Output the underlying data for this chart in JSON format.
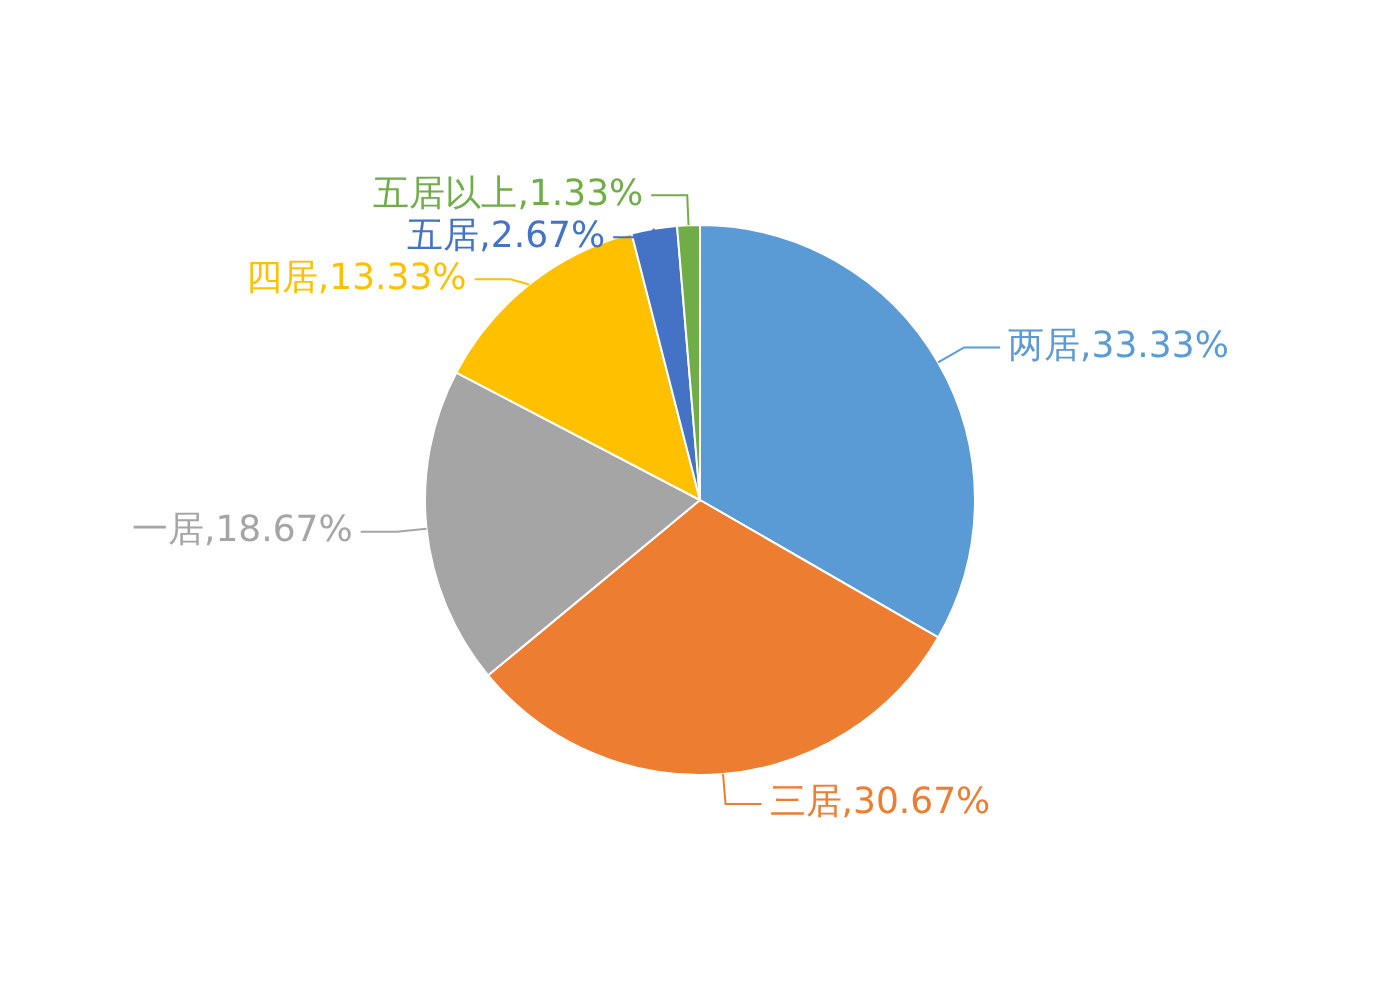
{
  "chart_data": {
    "type": "pie",
    "categories": [
      "两居",
      "三居",
      "一居",
      "四居",
      "五居",
      "五居以上"
    ],
    "values": [
      33.33,
      30.67,
      18.67,
      13.33,
      2.67,
      1.33
    ],
    "value_labels": [
      "33.33%",
      "30.67%",
      "18.67%",
      "13.33%",
      "2.67%",
      "1.33%"
    ],
    "colors": [
      "#5b9bd5",
      "#ed7d31",
      "#a5a5a5",
      "#ffc000",
      "#4472c4",
      "#70ad47"
    ],
    "legend": false
  }
}
